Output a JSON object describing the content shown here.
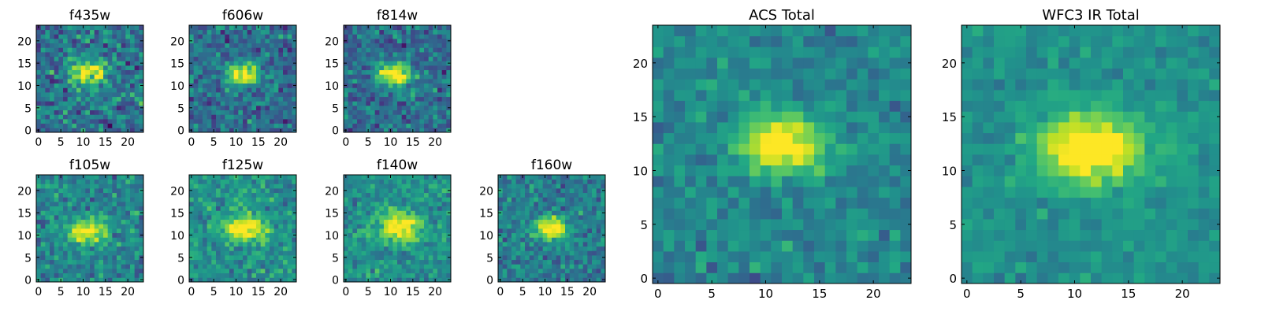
{
  "figure": {
    "colormap": "viridis",
    "colors": {
      "viridis_low": "#440154",
      "viridis_mid": "#21918c",
      "viridis_high": "#fde725"
    }
  },
  "chart_data": [
    {
      "type": "heatmap",
      "title": "f435w",
      "xticks": [
        "0",
        "5",
        "10",
        "15",
        "20"
      ],
      "yticks": [
        "0",
        "5",
        "10",
        "15",
        "20"
      ],
      "grid_size": [
        24,
        24
      ],
      "xlim": [
        -0.5,
        23.5
      ],
      "ylim": [
        -0.5,
        23.5
      ],
      "source_center": [
        11,
        13
      ],
      "source_radius": 3.2,
      "source_peak": 0.82,
      "noise": 0.55,
      "background": 0.38,
      "seed": 11,
      "grid": false
    },
    {
      "type": "heatmap",
      "title": "f606w",
      "xticks": [
        "0",
        "5",
        "10",
        "15",
        "20"
      ],
      "yticks": [
        "0",
        "5",
        "10",
        "15",
        "20"
      ],
      "grid_size": [
        24,
        24
      ],
      "xlim": [
        -0.5,
        23.5
      ],
      "ylim": [
        -0.5,
        23.5
      ],
      "source_center": [
        11.5,
        12.5
      ],
      "source_radius": 2.6,
      "source_peak": 0.95,
      "noise": 0.45,
      "background": 0.36,
      "seed": 23,
      "grid": false
    },
    {
      "type": "heatmap",
      "title": "f814w",
      "xticks": [
        "0",
        "5",
        "10",
        "15",
        "20"
      ],
      "yticks": [
        "0",
        "5",
        "10",
        "15",
        "20"
      ],
      "grid_size": [
        24,
        24
      ],
      "xlim": [
        -0.5,
        23.5
      ],
      "ylim": [
        -0.5,
        23.5
      ],
      "source_center": [
        11,
        12.5
      ],
      "source_radius": 2.8,
      "source_peak": 0.95,
      "noise": 0.45,
      "background": 0.36,
      "seed": 37,
      "grid": false
    },
    {
      "type": "heatmap",
      "title": "f105w",
      "xticks": [
        "0",
        "5",
        "10",
        "15",
        "20"
      ],
      "yticks": [
        "0",
        "5",
        "10",
        "15",
        "20"
      ],
      "grid_size": [
        24,
        24
      ],
      "xlim": [
        -0.5,
        23.5
      ],
      "ylim": [
        -0.5,
        23.5
      ],
      "source_center": [
        11,
        11
      ],
      "source_radius": 3.0,
      "source_peak": 0.85,
      "noise": 0.4,
      "background": 0.45,
      "seed": 41,
      "grid": false
    },
    {
      "type": "heatmap",
      "title": "f125w",
      "xticks": [
        "0",
        "5",
        "10",
        "15",
        "20"
      ],
      "yticks": [
        "0",
        "5",
        "10",
        "15",
        "20"
      ],
      "grid_size": [
        24,
        24
      ],
      "xlim": [
        -0.5,
        23.5
      ],
      "ylim": [
        -0.5,
        23.5
      ],
      "source_center": [
        12,
        11.5
      ],
      "source_radius": 3.4,
      "source_peak": 0.8,
      "noise": 0.38,
      "background": 0.5,
      "seed": 53,
      "grid": false
    },
    {
      "type": "heatmap",
      "title": "f140w",
      "xticks": [
        "0",
        "5",
        "10",
        "15",
        "20"
      ],
      "yticks": [
        "0",
        "5",
        "10",
        "15",
        "20"
      ],
      "grid_size": [
        24,
        24
      ],
      "xlim": [
        -0.5,
        23.5
      ],
      "ylim": [
        -0.5,
        23.5
      ],
      "source_center": [
        12,
        12
      ],
      "source_radius": 3.6,
      "source_peak": 0.8,
      "noise": 0.35,
      "background": 0.5,
      "seed": 67,
      "grid": false
    },
    {
      "type": "heatmap",
      "title": "f160w",
      "xticks": [
        "0",
        "5",
        "10",
        "15",
        "20"
      ],
      "yticks": [
        "0",
        "5",
        "10",
        "15",
        "20"
      ],
      "grid_size": [
        24,
        24
      ],
      "xlim": [
        -0.5,
        23.5
      ],
      "ylim": [
        -0.5,
        23.5
      ],
      "source_center": [
        11.5,
        11.5
      ],
      "source_radius": 2.8,
      "source_peak": 0.85,
      "noise": 0.4,
      "background": 0.42,
      "seed": 79,
      "grid": false
    },
    {
      "type": "heatmap",
      "title": "ACS Total",
      "xticks": [
        "0",
        "5",
        "10",
        "15",
        "20"
      ],
      "yticks": [
        "0",
        "5",
        "10",
        "15",
        "20"
      ],
      "grid_size": [
        24,
        24
      ],
      "xlim": [
        -0.5,
        23.5
      ],
      "ylim": [
        -0.5,
        23.5
      ],
      "source_center": [
        11.5,
        12.5
      ],
      "source_radius": 3.0,
      "source_peak": 0.9,
      "noise": 0.3,
      "background": 0.45,
      "seed": 97,
      "grid": false
    },
    {
      "type": "heatmap",
      "title": "WFC3 IR Total",
      "xticks": [
        "0",
        "5",
        "10",
        "15",
        "20"
      ],
      "yticks": [
        "0",
        "5",
        "10",
        "15",
        "20"
      ],
      "grid_size": [
        24,
        24
      ],
      "xlim": [
        -0.5,
        23.5
      ],
      "ylim": [
        -0.5,
        23.5
      ],
      "source_center": [
        11.5,
        12
      ],
      "source_radius": 3.6,
      "source_peak": 0.85,
      "noise": 0.22,
      "background": 0.5,
      "seed": 113,
      "grid": false
    }
  ]
}
